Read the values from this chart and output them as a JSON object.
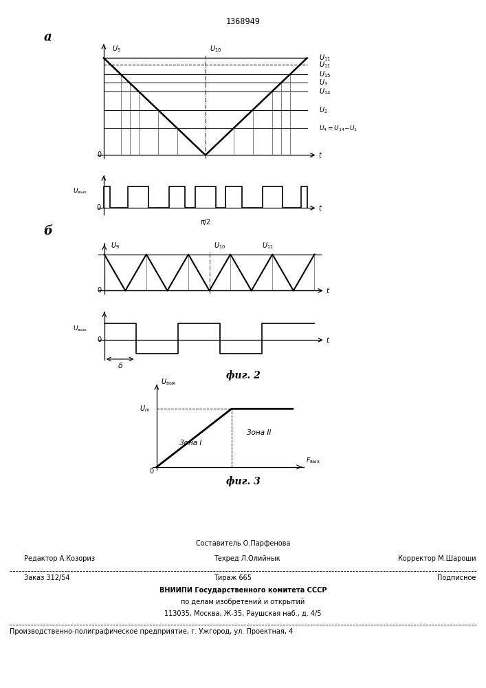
{
  "title": "1368949",
  "fig2_label": "фиг. 2",
  "fig3_label": "фиг. 3",
  "label_a": "а",
  "label_b": "б",
  "bg_color": "#ffffff",
  "line_color": "#000000",
  "footer_line1": "Составитель О.Парфенова",
  "footer_line2_left": "Редактор А.Козориз",
  "footer_line2_center": "Техред Л.Олийнык",
  "footer_line2_right": "Корректор М.Шароши",
  "footer_line3_left": "Заказ 312/54",
  "footer_line3_center": "Тираж 665",
  "footer_line3_right": "Подписное",
  "footer_line4": "ВНИИПИ Государственного комитета СССР",
  "footer_line5": "по делам изобретений и открытий",
  "footer_line6": "113035, Москва, Ж-35, Раушская наб., д. 4/5",
  "footer_line7": "Производственно-полиграфическое предприятие, г. Ужгород, ул. Проектная, 4"
}
